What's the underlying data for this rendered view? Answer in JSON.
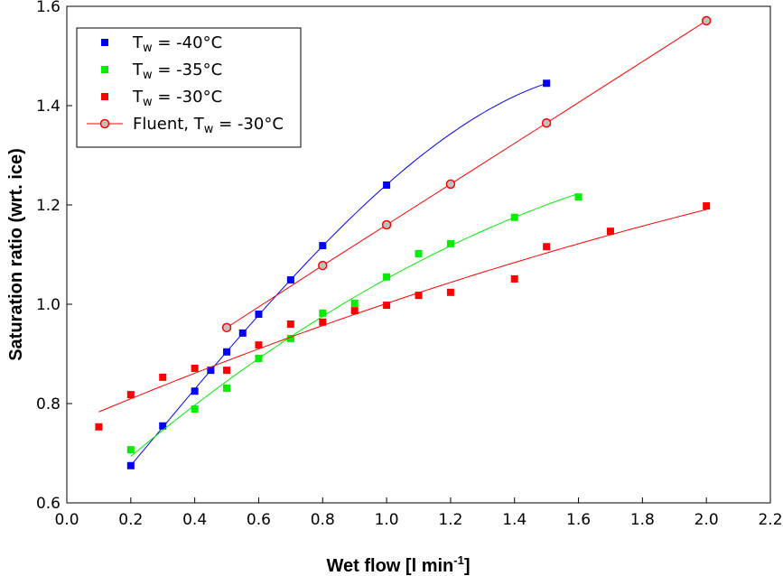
{
  "chart_data": {
    "type": "scatter",
    "xlabel": "Wet flow [l min",
    "xlabel_sup": "-1",
    "xlabel_end": "]",
    "ylabel": "Saturation ratio  (wrt. ice)",
    "xlim": [
      0,
      2.2
    ],
    "ylim": [
      0.6,
      1.6
    ],
    "xticks": [
      "0.0",
      "0.2",
      "0.4",
      "0.6",
      "0.8",
      "1.0",
      "1.2",
      "1.4",
      "1.6",
      "1.8",
      "2.0",
      "2.2"
    ],
    "yticks": [
      "0.6",
      "0.8",
      "1.0",
      "1.2",
      "1.4",
      "1.6"
    ],
    "legend_position": "top-left",
    "series": [
      {
        "name": "Tw = -40°C",
        "label_main": "T",
        "label_sub": "w",
        "label_rest": " = -40°C",
        "color": "#0000ff",
        "fit": "cubic",
        "x": [
          0.2,
          0.3,
          0.4,
          0.45,
          0.5,
          0.55,
          0.6,
          0.7,
          0.8,
          1.0,
          1.5
        ],
        "y": [
          0.675,
          0.755,
          0.825,
          0.867,
          0.904,
          0.942,
          0.98,
          1.049,
          1.118,
          1.24,
          1.445
        ]
      },
      {
        "name": "Tw = -35°C",
        "label_main": "T",
        "label_sub": "w",
        "label_rest": " = -35°C",
        "color": "#00ee00",
        "fit": "quadratic",
        "x": [
          0.2,
          0.4,
          0.5,
          0.6,
          0.7,
          0.8,
          0.9,
          1.0,
          1.1,
          1.2,
          1.4,
          1.6
        ],
        "y": [
          0.707,
          0.789,
          0.831,
          0.891,
          0.931,
          0.982,
          1.002,
          1.055,
          1.102,
          1.122,
          1.175,
          1.216
        ]
      },
      {
        "name": "Tw = -30°C",
        "label_main": "T",
        "label_sub": "w",
        "label_rest": " = -30°C",
        "color": "#ff0000",
        "fit": "quadratic",
        "x": [
          0.1,
          0.2,
          0.3,
          0.4,
          0.5,
          0.6,
          0.7,
          0.8,
          0.9,
          1.0,
          1.1,
          1.2,
          1.4,
          1.5,
          1.7,
          2.0
        ],
        "y": [
          0.753,
          0.818,
          0.853,
          0.871,
          0.867,
          0.918,
          0.96,
          0.964,
          0.987,
          0.998,
          1.018,
          1.024,
          1.051,
          1.116,
          1.147,
          1.198
        ]
      },
      {
        "name": "Fluent, Tw = -30°C",
        "label_main": "Fluent, T",
        "label_sub": "w",
        "label_rest": " = -30°C",
        "color": "#ff0000",
        "fit": "line",
        "x": [
          0.5,
          0.8,
          1.0,
          1.2,
          1.5,
          2.0
        ],
        "y": [
          0.953,
          1.078,
          1.16,
          1.242,
          1.365,
          1.571
        ]
      }
    ]
  }
}
